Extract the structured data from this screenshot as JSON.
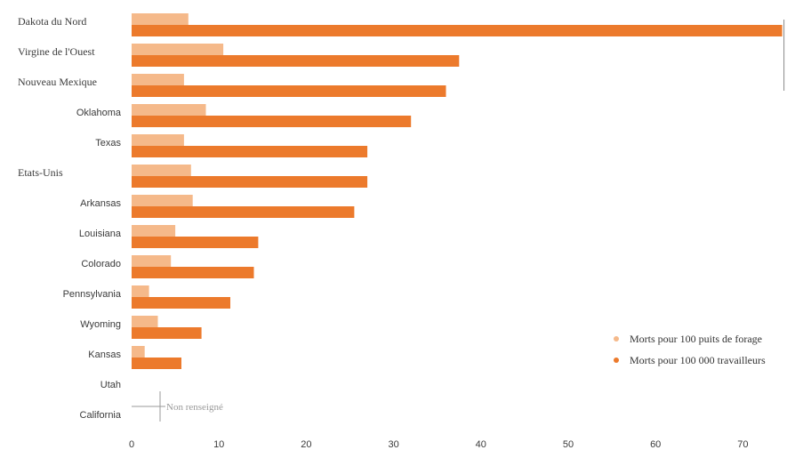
{
  "chart_data": {
    "type": "bar",
    "orientation": "horizontal",
    "categories": [
      "Dakota du Nord",
      "Virgine de l'Ouest",
      "Nouveau Mexique",
      "Oklahoma",
      "Texas",
      "Etats-Unis",
      "Arkansas",
      "Louisiana",
      "Colorado",
      "Pennsylvania",
      "Wyoming",
      "Kansas",
      "Utah",
      "California"
    ],
    "serif_categories": [
      "Dakota du Nord",
      "Virgine de l'Ouest",
      "Nouveau Mexique",
      "Etats-Unis"
    ],
    "series": [
      {
        "name": "Morts pour 100 puits de forage",
        "color": "#f5b98a",
        "values": [
          6.5,
          10.5,
          6,
          8.5,
          6,
          6.8,
          7,
          5,
          4.5,
          2,
          3,
          1.5,
          null,
          null
        ]
      },
      {
        "name": "Morts pour 100 000 travailleurs",
        "color": "#ec7a2c",
        "values": [
          74.5,
          37.5,
          36,
          32,
          27,
          27,
          25.5,
          14.5,
          14,
          11.3,
          8,
          5.7,
          null,
          null
        ]
      }
    ],
    "xticks": [
      0,
      10,
      20,
      30,
      40,
      50,
      60,
      70
    ],
    "xlim": [
      0,
      75
    ],
    "title": "",
    "xlabel": "",
    "ylabel": "",
    "legend_position": "right",
    "annotation": {
      "text": "Non renseigné",
      "categories": [
        "Utah",
        "California"
      ]
    },
    "grid": false
  }
}
